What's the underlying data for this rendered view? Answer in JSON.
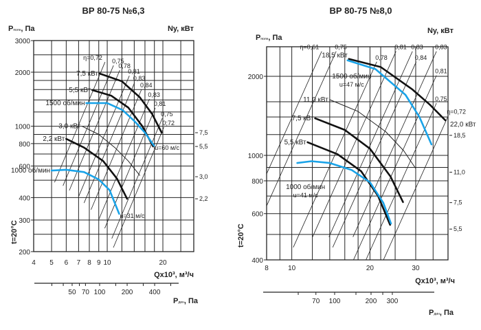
{
  "chart_data": [
    {
      "type": "line",
      "title": "ВР 80-75 №6,3",
      "y_label": {
        "main": "P",
        "sub": "полн",
        "unit": ", Па"
      },
      "y2_label": "Ny, кВт",
      "x_label": "Qx10³, м³/ч",
      "x2_label": {
        "main": "P",
        "sub": "дин",
        "unit": ", Па"
      },
      "side_label": "t=20°C",
      "x_scale": "log",
      "y_scale": "log",
      "xlim": [
        4,
        29.4
      ],
      "ylim": [
        200,
        3000
      ],
      "x_ticks": [
        4,
        5,
        6,
        7,
        8,
        9,
        10,
        20
      ],
      "y_ticks": [
        3000,
        2000,
        1000,
        800,
        600,
        400,
        300,
        200
      ],
      "grid_x": [
        5,
        6,
        7,
        8,
        9,
        10,
        12,
        14,
        16,
        18,
        20,
        25
      ],
      "grid_y": [
        2500,
        2000,
        1800,
        1600,
        1400,
        1200,
        1000,
        900,
        800,
        700,
        600,
        500,
        400,
        300,
        250
      ],
      "x2_ticks": [
        30,
        40,
        50,
        60,
        70,
        100,
        150,
        200,
        300,
        400,
        600
      ],
      "x2_tick_labels": [
        50,
        70,
        100,
        200,
        400
      ],
      "series": [
        {
          "name": "7,5 кВт",
          "label": "7,5 кВт",
          "color": "#111111",
          "width": 2.6,
          "points": [
            [
              9.1,
              1965
            ],
            [
              12,
              1780
            ],
            [
              15,
              1450
            ],
            [
              17.5,
              1170
            ],
            [
              19.7,
              920
            ]
          ]
        },
        {
          "name": "5,5 кВт",
          "label": "5;5 кВт",
          "color": "#111111",
          "width": 2.6,
          "points": [
            [
              8.3,
              1590
            ],
            [
              10.5,
              1480
            ],
            [
              13,
              1270
            ],
            [
              15.5,
              1000
            ],
            [
              17.7,
              771
            ]
          ]
        },
        {
          "name": "1500 об/мин",
          "label": "1500 об/мин",
          "end_label": "u=60 м/с",
          "color": "#1aa3e8",
          "width": 2.6,
          "points": [
            [
              7.7,
              1346
            ],
            [
              10,
              1346
            ],
            [
              12.1,
              1230
            ],
            [
              14,
              1070
            ],
            [
              16,
              920
            ],
            [
              17.9,
              778
            ]
          ]
        },
        {
          "name": "3,0 кВт",
          "label": "3,0 кВт",
          "color": "#222222",
          "width": 1,
          "points": [
            [
              7.3,
              1000
            ],
            [
              9,
              900
            ],
            [
              11,
              760
            ],
            [
              13,
              640
            ],
            [
              15,
              532
            ]
          ]
        },
        {
          "name": "2,2 кВт",
          "label": "2,2 кВт",
          "color": "#111111",
          "width": 2.6,
          "points": [
            [
              6.0,
              850
            ],
            [
              7.5,
              760
            ],
            [
              9.5,
              640
            ],
            [
              11.3,
              510
            ],
            [
              12.8,
              394
            ]
          ]
        },
        {
          "name": "1000 об/мин",
          "label": "1000 об/мин",
          "end_label": "u=31 м/с",
          "color": "#1aa3e8",
          "width": 2.6,
          "points": [
            [
              5,
              566
            ],
            [
              6,
              572
            ],
            [
              7.5,
              555
            ],
            [
              9,
              505
            ],
            [
              10.3,
              440
            ],
            [
              11.6,
              325
            ]
          ]
        }
      ],
      "power_ticks": [
        {
          "label": "7,5",
          "P": 920
        },
        {
          "label": "5,5",
          "P": 771
        },
        {
          "label": "3,0",
          "P": 523
        },
        {
          "label": "2,2",
          "P": 394
        }
      ],
      "eta_labels": [
        {
          "label": "η=0,72",
          "Q": 9.9,
          "P": 2320
        },
        {
          "label": "0,75",
          "Q": 11.0,
          "P": 2220
        },
        {
          "label": "0,78",
          "Q": 11.9,
          "P": 2090
        },
        {
          "label": "0,81",
          "Q": 13.4,
          "P": 1945
        },
        {
          "label": "0,83",
          "Q": 14.3,
          "P": 1780
        },
        {
          "label": "0,84",
          "Q": 15.6,
          "P": 1633
        },
        {
          "label": "0,83",
          "Q": 17.2,
          "P": 1443
        },
        {
          "label": "0,81",
          "Q": 18.5,
          "P": 1286
        },
        {
          "label": "0,75",
          "Q": 20.2,
          "P": 1127
        },
        {
          "label": "0;72",
          "Q": 20.6,
          "P": 1004
        }
      ]
    },
    {
      "type": "line",
      "title": "ВР 80-75 №8,0",
      "y_label": {
        "main": "P",
        "sub": "полн",
        "unit": ", Па"
      },
      "y2_label": "Ny, кВт",
      "x_label": "Qx10³, м³/ч",
      "x2_label": {
        "main": "P",
        "sub": "дин",
        "unit": ", Па"
      },
      "side_label": "t=20°C",
      "x_scale": "log",
      "y_scale": "log",
      "xlim": [
        8,
        40
      ],
      "ylim": [
        400,
        2590
      ],
      "x_ticks": [
        8,
        10,
        20,
        30
      ],
      "y_ticks": [
        2000,
        1000,
        800,
        600,
        400
      ],
      "grid_x": [
        9,
        10,
        12,
        14,
        16,
        18,
        20,
        22,
        25,
        30,
        35
      ],
      "grid_y": [
        500,
        600,
        700,
        800,
        900,
        1000,
        1200,
        1400,
        1600,
        2000
      ],
      "x2_ticks": [
        50,
        70,
        100,
        150,
        200,
        250,
        300
      ],
      "x2_tick_labels": [
        70,
        100,
        200,
        300
      ],
      "series": [
        {
          "name": "18,5 кВт",
          "label": "18,5 кВт",
          "color": "#111111",
          "width": 2.6,
          "points": [
            [
              16.6,
              2330
            ],
            [
              22,
              2170
            ],
            [
              29.1,
              1783
            ],
            [
              34,
              1560
            ],
            [
              39,
              1360
            ]
          ]
        },
        {
          "name": "1500 об/мин",
          "label": "1500 об/мин",
          "end_label": "u=47 м/с",
          "color": "#1aa3e8",
          "width": 2.6,
          "points": [
            [
              16.4,
              2300
            ],
            [
              21,
              2130
            ],
            [
              27.4,
              1700
            ],
            [
              31,
              1400
            ],
            [
              34.5,
              1101
            ]
          ]
        },
        {
          "name": "11,0 кВт",
          "label": "11,0 кВт",
          "color": "#222222",
          "width": 1,
          "points": [
            [
              14,
              1629
            ],
            [
              18,
              1470
            ],
            [
              23,
              1230
            ],
            [
              27,
              1040
            ],
            [
              30,
              891
            ]
          ]
        },
        {
          "name": "7,5 кВт",
          "label": "7;5 кВт",
          "color": "#111111",
          "width": 2.6,
          "points": [
            [
              12.3,
              1384
            ],
            [
              16,
              1250
            ],
            [
              20,
              1060
            ],
            [
              24,
              830
            ],
            [
              26.8,
              664
            ]
          ]
        },
        {
          "name": "5,5 кВт",
          "label": "5,5 кВт",
          "color": "#111111",
          "width": 2.6,
          "points": [
            [
              11.5,
              1122
            ],
            [
              15,
              1010
            ],
            [
              18.5,
              870
            ],
            [
              21.5,
              700
            ],
            [
              23.9,
              544
            ]
          ]
        },
        {
          "name": "1000 об/мин",
          "label": "1000 об/мин",
          "end_label": "u=41 м/с",
          "color": "#1aa3e8",
          "width": 2.6,
          "points": [
            [
              10.5,
              935
            ],
            [
              11.9,
              950
            ],
            [
              14,
              935
            ],
            [
              17,
              880
            ],
            [
              20,
              790
            ],
            [
              22.5,
              660
            ],
            [
              24.1,
              550
            ]
          ]
        }
      ],
      "power_ticks": [
        {
          "label": "22,0 кВт",
          "P": 1319,
          "big": true
        },
        {
          "label": "18,5",
          "P": 1192
        },
        {
          "label": "11,0",
          "P": 863
        },
        {
          "label": "7,5",
          "P": 661
        },
        {
          "label": "5,5",
          "P": 524
        }
      ],
      "eta_labels": [
        {
          "label": "η=0,61",
          "Q": 13.2,
          "P": 2520
        },
        {
          "label": "0,75",
          "Q": 15.0,
          "P": 2520
        },
        {
          "label": "0,81",
          "Q": 25.5,
          "P": 2520
        },
        {
          "label": "0,83",
          "Q": 29.5,
          "P": 2520
        },
        {
          "label": "0,83",
          "Q": 36.5,
          "P": 2520
        },
        {
          "label": "0,78",
          "Q": 21.5,
          "P": 2300
        },
        {
          "label": "0,84",
          "Q": 30.5,
          "P": 2300
        },
        {
          "label": "0,81",
          "Q": 36.5,
          "P": 2040
        },
        {
          "label": "0,75",
          "Q": 36.5,
          "P": 1600
        },
        {
          "label": "η=0,72",
          "Q": 40.5,
          "P": 1430
        }
      ]
    }
  ]
}
